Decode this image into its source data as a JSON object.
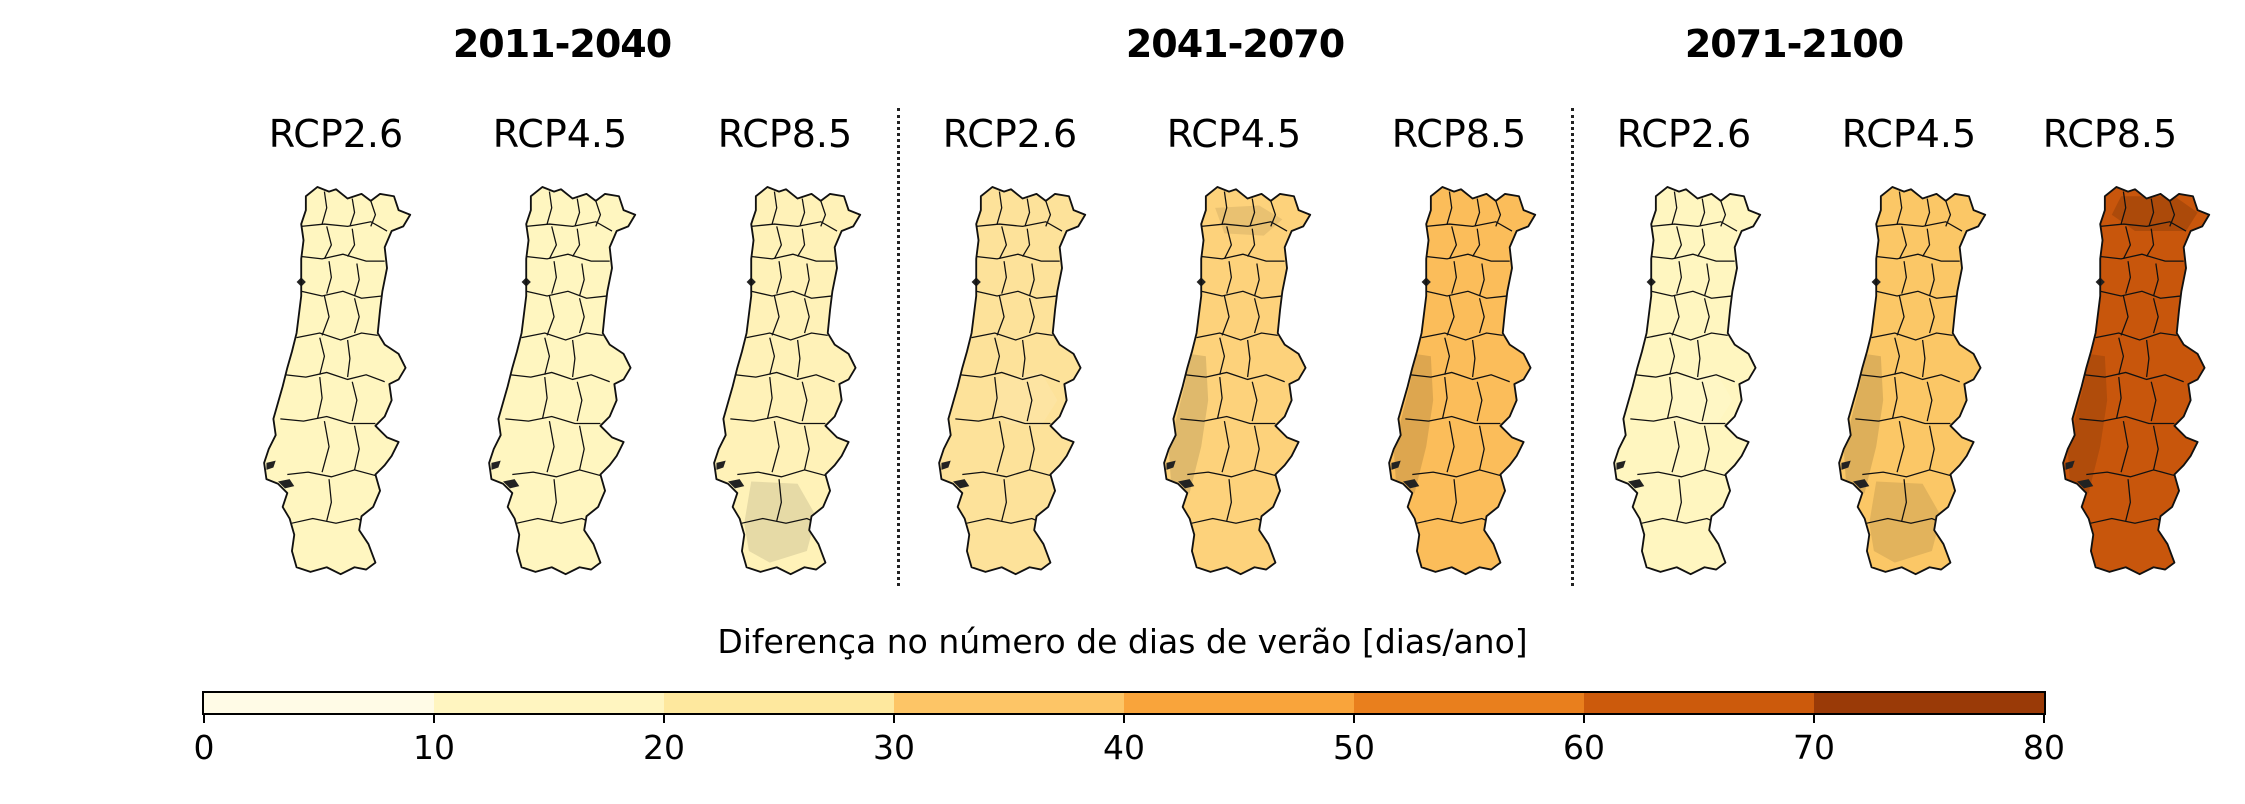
{
  "periods": [
    {
      "label": "2011-2040",
      "scenarios": [
        {
          "label": "RCP2.6",
          "base": "#fff6c0",
          "blobs": []
        },
        {
          "label": "RCP4.5",
          "base": "#fff6c0",
          "blobs": []
        },
        {
          "label": "RCP8.5",
          "base": "#fff2b8",
          "blobs": [
            "south"
          ]
        }
      ]
    },
    {
      "label": "2041-2070",
      "scenarios": [
        {
          "label": "RCP2.6",
          "base": "#fde29a",
          "blobs": [
            "center"
          ]
        },
        {
          "label": "RCP4.5",
          "base": "#fdd27b",
          "blobs": [
            "coast",
            "north"
          ]
        },
        {
          "label": "RCP8.5",
          "base": "#fbbd5a",
          "blobs": [
            "coast"
          ]
        }
      ]
    },
    {
      "label": "2071-2100",
      "scenarios": [
        {
          "label": "RCP2.6",
          "base": "#fff6c0",
          "blobs": [
            "center"
          ]
        },
        {
          "label": "RCP4.5",
          "base": "#fbc766",
          "blobs": [
            "coast",
            "south"
          ]
        },
        {
          "label": "RCP8.5",
          "base": "#c8560c",
          "blobs": [
            "coast",
            "northdark"
          ]
        }
      ]
    }
  ],
  "legend": {
    "title": "Diferença no número de dias de verão [dias/ano]",
    "ticks": [
      "0",
      "10",
      "20",
      "30",
      "40",
      "50",
      "60",
      "70",
      "80"
    ],
    "colors": [
      "#fffbe6",
      "#fff5c0",
      "#fee89e",
      "#fdc566",
      "#f9a43b",
      "#e97f1d",
      "#cc5a0c",
      "#9a3a07"
    ],
    "range": [
      0,
      80
    ]
  }
}
